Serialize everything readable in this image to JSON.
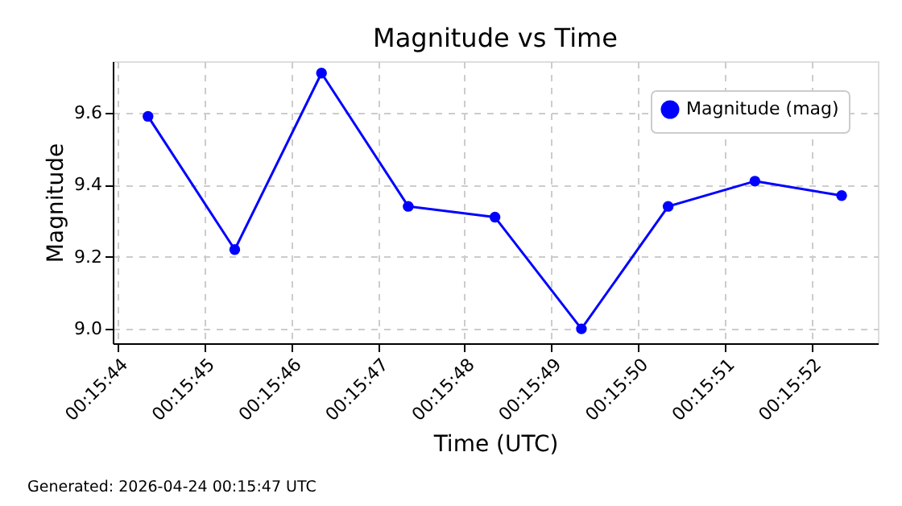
{
  "chart_data": {
    "type": "line",
    "title": "Magnitude vs Time",
    "xlabel": "Time (UTC)",
    "ylabel": "Magnitude",
    "x": [
      0.262319,
      0.262597,
      0.262875,
      0.263153,
      0.263431,
      0.263708,
      0.263986,
      0.264264,
      0.264542
    ],
    "series": [
      {
        "name": "Magnitude (mag)",
        "color": "#0000ff",
        "values": [
          9.59,
          9.22,
          9.71,
          9.34,
          9.31,
          9.0,
          9.34,
          9.41,
          9.37
        ]
      }
    ],
    "xlim": [
      0.262206,
      0.264658
    ],
    "xticks": [
      {
        "value": 0.262222,
        "label": "00:15:44"
      },
      {
        "value": 0.2625,
        "label": "00:15:45"
      },
      {
        "value": 0.262778,
        "label": "00:15:46"
      },
      {
        "value": 0.263056,
        "label": "00:15:47"
      },
      {
        "value": 0.263333,
        "label": "00:15:48"
      },
      {
        "value": 0.263611,
        "label": "00:15:49"
      },
      {
        "value": 0.263889,
        "label": "00:15:50"
      },
      {
        "value": 0.264167,
        "label": "00:15:51"
      },
      {
        "value": 0.264444,
        "label": "00:15:52"
      }
    ],
    "ylim": [
      8.96,
      9.743
    ],
    "yticks": [
      {
        "value": 9.0,
        "label": "9.0"
      },
      {
        "value": 9.2,
        "label": "9.2"
      },
      {
        "value": 9.4,
        "label": "9.4"
      },
      {
        "value": 9.6,
        "label": "9.6"
      }
    ],
    "grid": true,
    "legend": "top right",
    "marker": "circle",
    "line_style": "solid",
    "annotations": [
      "Generated: 2026-04-24 00:15:47 UTC"
    ]
  }
}
